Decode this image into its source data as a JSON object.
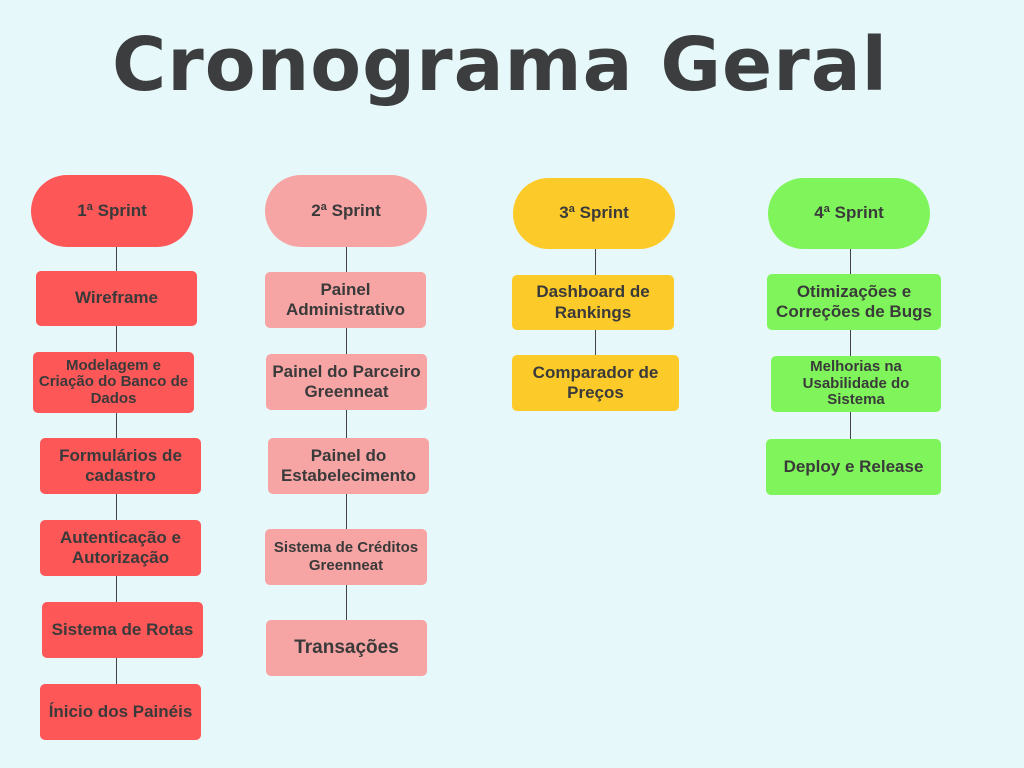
{
  "title": "Cronograma Geral",
  "colors": {
    "background": "#e6f8f9",
    "sprint1": "#fe5757",
    "sprint2": "#f7a4a4",
    "sprint3": "#fccb2a",
    "sprint4": "#7ff55b",
    "text": "#3a3a3a"
  },
  "sprints": [
    {
      "label": "1ª Sprint",
      "tasks": [
        "Wireframe",
        "Modelagem e Criação do Banco de Dados",
        "Formulários de cadastro",
        "Autenticação e Autorização",
        "Sistema de Rotas",
        "Ínicio dos Painéis"
      ]
    },
    {
      "label": "2ª Sprint",
      "tasks": [
        "Painel Administrativo",
        "Painel do Parceiro Greenneat",
        "Painel do Estabelecimento",
        "Sistema de Créditos Greenneat",
        "Transações"
      ]
    },
    {
      "label": "3ª Sprint",
      "tasks": [
        "Dashboard de Rankings",
        "Comparador de Preços"
      ]
    },
    {
      "label": "4ª Sprint",
      "tasks": [
        "Otimizações e Correções de Bugs",
        "Melhorias na Usabilidade do Sistema",
        "Deploy e Release"
      ]
    }
  ]
}
